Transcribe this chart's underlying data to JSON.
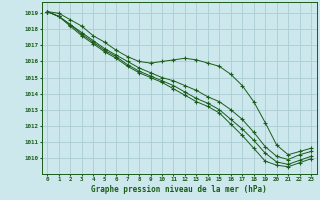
{
  "background_color": "#cce8ec",
  "grid_color": "#aaccd4",
  "line_color": "#1a5c1a",
  "title": "Graphe pression niveau de la mer (hPa)",
  "xlim": [
    -0.5,
    23.5
  ],
  "ylim": [
    1009.0,
    1019.7
  ],
  "yticks": [
    1010,
    1011,
    1012,
    1013,
    1014,
    1015,
    1016,
    1017,
    1018,
    1019
  ],
  "xticks": [
    0,
    1,
    2,
    3,
    4,
    5,
    6,
    7,
    8,
    9,
    10,
    11,
    12,
    13,
    14,
    15,
    16,
    17,
    18,
    19,
    20,
    21,
    22,
    23
  ],
  "series": [
    [
      1019.1,
      1019.0,
      1018.6,
      1018.2,
      1017.6,
      1017.2,
      1016.7,
      1016.3,
      1016.0,
      1015.9,
      1016.0,
      1016.1,
      1016.2,
      1016.1,
      1015.9,
      1015.7,
      1015.2,
      1014.5,
      1013.5,
      1012.2,
      1010.8,
      1010.2,
      1010.4,
      1010.6
    ],
    [
      1019.1,
      1018.8,
      1018.3,
      1017.8,
      1017.3,
      1016.8,
      1016.4,
      1016.0,
      1015.6,
      1015.3,
      1015.0,
      1014.8,
      1014.5,
      1014.2,
      1013.8,
      1013.5,
      1013.0,
      1012.4,
      1011.6,
      1010.7,
      1010.1,
      1009.9,
      1010.2,
      1010.4
    ],
    [
      1019.1,
      1018.8,
      1018.3,
      1017.7,
      1017.2,
      1016.7,
      1016.3,
      1015.8,
      1015.4,
      1015.1,
      1014.8,
      1014.5,
      1014.1,
      1013.7,
      1013.4,
      1013.0,
      1012.4,
      1011.8,
      1011.1,
      1010.3,
      1009.75,
      1009.6,
      1009.85,
      1010.1
    ],
    [
      1019.1,
      1018.8,
      1018.2,
      1017.6,
      1017.1,
      1016.6,
      1016.2,
      1015.7,
      1015.3,
      1015.0,
      1014.7,
      1014.3,
      1013.9,
      1013.5,
      1013.2,
      1012.8,
      1012.1,
      1011.4,
      1010.6,
      1009.8,
      1009.55,
      1009.45,
      1009.7,
      1009.95
    ]
  ]
}
